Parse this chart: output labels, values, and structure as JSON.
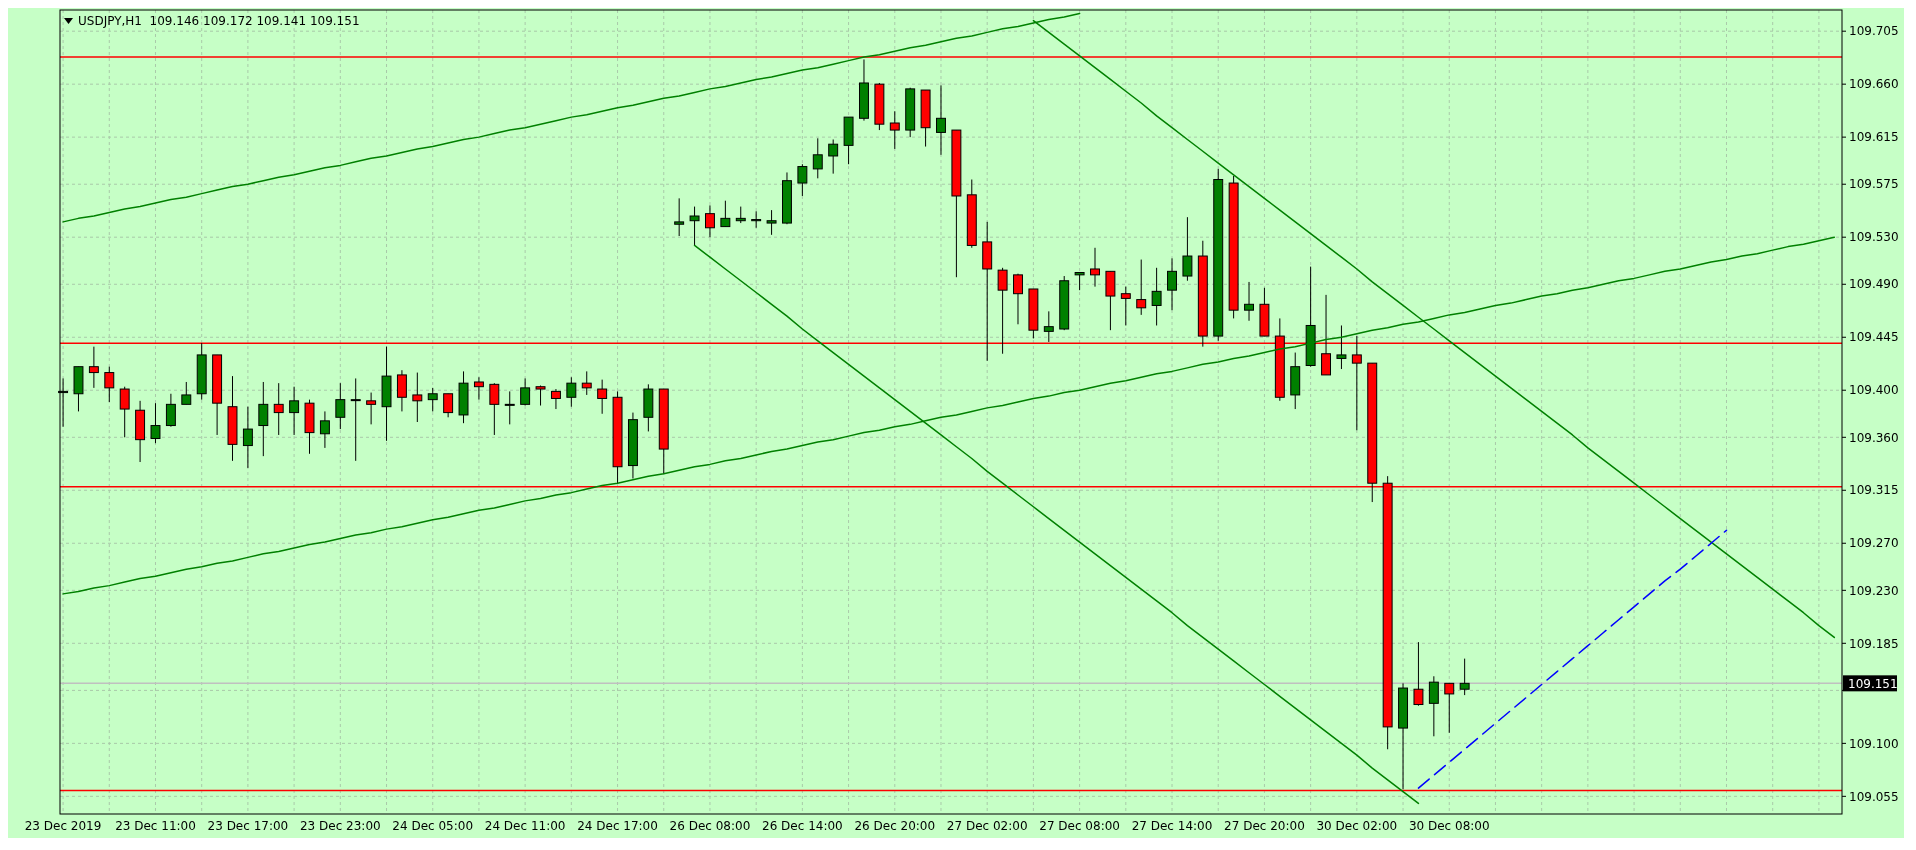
{
  "chart_data": {
    "type": "candlestick",
    "title": "USDJPY,H1  109.146 109.172 109.141 109.151",
    "categories": [
      "23 Dec 2019",
      null,
      null,
      null,
      null,
      null,
      "23 Dec 11:00",
      null,
      null,
      null,
      null,
      null,
      "23 Dec 17:00",
      null,
      null,
      null,
      null,
      null,
      "23 Dec 23:00",
      null,
      null,
      null,
      null,
      null,
      "24 Dec 05:00",
      null,
      null,
      null,
      null,
      null,
      "24 Dec 11:00",
      null,
      null,
      null,
      null,
      null,
      "24 Dec 17:00",
      null,
      null,
      null,
      null,
      null,
      "26 Dec 08:00",
      null,
      null,
      null,
      null,
      null,
      "26 Dec 14:00",
      null,
      null,
      null,
      null,
      null,
      "26 Dec 20:00",
      null,
      null,
      null,
      null,
      null,
      "27 Dec 02:00",
      null,
      null,
      null,
      null,
      null,
      "27 Dec 08:00",
      null,
      null,
      null,
      null,
      null,
      "27 Dec 14:00",
      null,
      null,
      null,
      null,
      null,
      "27 Dec 20:00",
      null,
      null,
      null,
      null,
      null,
      "30 Dec 02:00",
      null,
      null,
      null,
      null,
      null,
      "30 Dec 08:00",
      null,
      null,
      null,
      null,
      null,
      null,
      null,
      null,
      null,
      null,
      null,
      null,
      null,
      null,
      null,
      null,
      null,
      null,
      null,
      null,
      null,
      null,
      null,
      null,
      null
    ],
    "ohlc": [
      [
        109.398,
        109.41,
        109.369,
        109.399
      ],
      [
        109.397,
        109.42,
        109.382,
        109.42
      ],
      [
        109.42,
        109.437,
        109.402,
        109.415
      ],
      [
        109.415,
        109.42,
        109.39,
        109.402
      ],
      [
        109.401,
        109.403,
        109.36,
        109.384
      ],
      [
        109.383,
        109.391,
        109.339,
        109.358
      ],
      [
        109.359,
        109.389,
        109.355,
        109.37
      ],
      [
        109.37,
        109.397,
        109.369,
        109.388
      ],
      [
        109.388,
        109.407,
        109.388,
        109.396
      ],
      [
        109.397,
        109.44,
        109.392,
        109.43
      ],
      [
        109.43,
        109.43,
        109.362,
        109.389
      ],
      [
        109.386,
        109.412,
        109.34,
        109.354
      ],
      [
        109.353,
        109.386,
        109.334,
        109.367
      ],
      [
        109.37,
        109.407,
        109.344,
        109.388
      ],
      [
        109.388,
        109.406,
        109.362,
        109.381
      ],
      [
        109.381,
        109.403,
        109.362,
        109.391
      ],
      [
        109.389,
        109.392,
        109.346,
        109.364
      ],
      [
        109.363,
        109.382,
        109.351,
        109.374
      ],
      [
        109.377,
        109.406,
        109.367,
        109.392
      ],
      [
        109.392,
        109.41,
        109.34,
        109.392
      ],
      [
        109.391,
        109.398,
        109.371,
        109.388
      ],
      [
        109.386,
        109.437,
        109.357,
        109.412
      ],
      [
        109.413,
        109.417,
        109.382,
        109.394
      ],
      [
        109.396,
        109.415,
        109.373,
        109.391
      ],
      [
        109.392,
        109.402,
        109.382,
        109.397
      ],
      [
        109.397,
        109.397,
        109.377,
        109.381
      ],
      [
        109.379,
        109.416,
        109.372,
        109.406
      ],
      [
        109.407,
        109.411,
        109.392,
        109.403
      ],
      [
        109.405,
        109.406,
        109.362,
        109.388
      ],
      [
        109.388,
        109.399,
        109.371,
        109.388
      ],
      [
        109.388,
        109.41,
        109.387,
        109.402
      ],
      [
        109.403,
        109.404,
        109.387,
        109.401
      ],
      [
        109.399,
        109.401,
        109.384,
        109.393
      ],
      [
        109.394,
        109.411,
        109.386,
        109.406
      ],
      [
        109.406,
        109.416,
        109.396,
        109.402
      ],
      [
        109.401,
        109.409,
        109.38,
        109.393
      ],
      [
        109.394,
        109.399,
        109.321,
        109.335
      ],
      [
        109.336,
        109.381,
        109.325,
        109.375
      ],
      [
        109.377,
        109.405,
        109.365,
        109.401
      ],
      [
        109.401,
        109.401,
        109.329,
        109.35
      ],
      [
        109.541,
        109.563,
        109.531,
        109.543
      ],
      [
        109.544,
        109.556,
        109.523,
        109.548
      ],
      [
        109.55,
        109.557,
        109.53,
        109.538
      ],
      [
        109.539,
        109.561,
        109.539,
        109.546
      ],
      [
        109.544,
        109.556,
        109.542,
        109.546
      ],
      [
        109.544,
        109.552,
        109.538,
        109.545
      ],
      [
        109.542,
        109.553,
        109.532,
        109.544
      ],
      [
        109.542,
        109.585,
        109.541,
        109.578
      ],
      [
        109.576,
        109.592,
        109.565,
        109.59
      ],
      [
        109.588,
        109.614,
        109.58,
        109.6
      ],
      [
        109.599,
        109.613,
        109.584,
        109.609
      ],
      [
        109.608,
        109.632,
        109.592,
        109.632
      ],
      [
        109.631,
        109.681,
        109.629,
        109.661
      ],
      [
        109.66,
        109.661,
        109.621,
        109.626
      ],
      [
        109.627,
        109.637,
        109.605,
        109.621
      ],
      [
        109.621,
        109.657,
        109.615,
        109.656
      ],
      [
        109.655,
        109.655,
        109.607,
        109.623
      ],
      [
        109.619,
        109.659,
        109.6,
        109.631
      ],
      [
        109.621,
        109.621,
        109.496,
        109.565
      ],
      [
        109.566,
        109.579,
        109.521,
        109.523
      ],
      [
        109.526,
        109.543,
        109.425,
        109.503
      ],
      [
        109.502,
        109.504,
        109.431,
        109.485
      ],
      [
        109.498,
        109.499,
        109.456,
        109.482
      ],
      [
        109.486,
        109.486,
        109.444,
        109.451
      ],
      [
        109.45,
        109.467,
        109.441,
        109.454
      ],
      [
        109.452,
        109.497,
        109.451,
        109.493
      ],
      [
        109.498,
        109.5,
        109.485,
        109.5
      ],
      [
        109.503,
        109.521,
        109.488,
        109.498
      ],
      [
        109.501,
        109.501,
        109.451,
        109.48
      ],
      [
        109.482,
        109.488,
        109.455,
        109.478
      ],
      [
        109.477,
        109.511,
        109.464,
        109.47
      ],
      [
        109.472,
        109.504,
        109.455,
        109.484
      ],
      [
        109.485,
        109.512,
        109.468,
        109.501
      ],
      [
        109.497,
        109.547,
        109.493,
        109.514
      ],
      [
        109.514,
        109.527,
        109.437,
        109.446
      ],
      [
        109.446,
        109.588,
        109.442,
        109.579
      ],
      [
        109.576,
        109.582,
        109.461,
        109.468
      ],
      [
        109.468,
        109.492,
        109.459,
        109.473
      ],
      [
        109.473,
        109.487,
        109.446,
        109.446
      ],
      [
        109.446,
        109.461,
        109.391,
        109.394
      ],
      [
        109.396,
        109.432,
        109.384,
        109.42
      ],
      [
        109.421,
        109.505,
        109.42,
        109.455
      ],
      [
        109.431,
        109.481,
        109.413,
        109.413
      ],
      [
        109.427,
        109.455,
        109.418,
        109.43
      ],
      [
        109.43,
        109.446,
        109.366,
        109.423
      ],
      [
        109.423,
        109.423,
        109.305,
        109.321
      ],
      [
        109.321,
        109.327,
        109.095,
        109.114
      ],
      [
        109.113,
        109.151,
        109.061,
        109.147
      ],
      [
        109.146,
        109.186,
        109.132,
        109.133
      ],
      [
        109.134,
        109.157,
        109.106,
        109.152
      ],
      [
        109.151,
        109.151,
        109.109,
        109.142
      ],
      [
        109.146,
        109.172,
        109.141,
        109.151
      ],
      null,
      null,
      null,
      null,
      null,
      null,
      null,
      null,
      null,
      null,
      null,
      null,
      null,
      null,
      null,
      null,
      null,
      null,
      null,
      null,
      null,
      null,
      null,
      null
    ],
    "colors": [
      "#008000",
      "#008000",
      "#ff0000",
      "#ff0000",
      "#ff0000",
      "#ff0000",
      "#008000",
      "#008000",
      "#008000",
      "#008000",
      "#ff0000",
      "#ff0000",
      "#008000",
      "#008000",
      "#ff0000",
      "#008000",
      "#ff0000",
      "#008000",
      "#008000",
      "#008000",
      "#ff0000",
      "#008000",
      "#ff0000",
      "#ff0000",
      "#008000",
      "#ff0000",
      "#008000",
      "#ff0000",
      "#ff0000",
      "#008000",
      "#008000",
      "#ff0000",
      "#ff0000",
      "#008000",
      "#ff0000",
      "#ff0000",
      "#ff0000",
      "#008000",
      "#008000",
      "#ff0000",
      "#008000",
      "#008000",
      "#ff0000",
      "#008000",
      "#008000",
      "#008000",
      "#008000",
      "#008000",
      "#008000",
      "#008000",
      "#008000",
      "#008000",
      "#008000",
      "#ff0000",
      "#ff0000",
      "#008000",
      "#ff0000",
      "#008000",
      "#ff0000",
      "#ff0000",
      "#ff0000",
      "#ff0000",
      "#ff0000",
      "#ff0000",
      "#008000",
      "#008000",
      "#008000",
      "#ff0000",
      "#ff0000",
      "#ff0000",
      "#ff0000",
      "#008000",
      "#008000",
      "#008000",
      "#ff0000",
      "#008000",
      "#ff0000",
      "#008000",
      "#ff0000",
      "#ff0000",
      "#008000",
      "#008000",
      "#ff0000",
      "#008000",
      "#ff0000",
      "#ff0000",
      "#ff0000",
      "#008000",
      "#ff0000",
      "#008000",
      "#ff0000",
      "#008000",
      null,
      null,
      null,
      null,
      null,
      null,
      null,
      null,
      null,
      null,
      null,
      null,
      null,
      null,
      null,
      null,
      null,
      null,
      null,
      null,
      null,
      null,
      null,
      null
    ],
    "series": [
      {
        "type": "line",
        "color": "#008000",
        "values": [
          109.543,
          109.546,
          109.548,
          109.551,
          109.554,
          109.556,
          109.559,
          109.562,
          109.564,
          109.567,
          109.57,
          109.573,
          109.575,
          109.578,
          109.581,
          109.583,
          109.586,
          109.589,
          109.591,
          109.594,
          109.597,
          109.599,
          109.602,
          109.605,
          109.607,
          109.61,
          109.613,
          109.615,
          109.618,
          109.621,
          109.623,
          109.626,
          109.629,
          109.632,
          109.634,
          109.637,
          109.64,
          109.642,
          109.645,
          109.648,
          109.65,
          109.653,
          109.656,
          109.658,
          109.661,
          109.664,
          109.666,
          109.669,
          109.672,
          109.674,
          109.677,
          109.68,
          109.683,
          109.685,
          109.688,
          109.691,
          109.693,
          109.696,
          109.699,
          109.701,
          109.704,
          109.707,
          109.709,
          109.712,
          109.715,
          109.717,
          109.72,
          null,
          null,
          null,
          null,
          null,
          null,
          null,
          null,
          null,
          null,
          null,
          null,
          null,
          null,
          null,
          null,
          null,
          null,
          null,
          null,
          null,
          null,
          null,
          null,
          null,
          null,
          null,
          null,
          null,
          null,
          null,
          null,
          null,
          null,
          null,
          null,
          null,
          null,
          null,
          null,
          null,
          null,
          null,
          null,
          null,
          null,
          null,
          null,
          null
        ]
      },
      {
        "type": "line",
        "color": "#008000",
        "values": [
          109.227,
          109.229,
          109.232,
          109.234,
          109.237,
          109.24,
          109.242,
          109.245,
          109.248,
          109.25,
          109.253,
          109.255,
          109.258,
          109.261,
          109.263,
          109.266,
          109.269,
          109.271,
          109.274,
          109.277,
          109.279,
          109.282,
          109.284,
          109.287,
          109.29,
          109.292,
          109.295,
          109.298,
          109.3,
          109.303,
          109.306,
          109.308,
          109.311,
          109.313,
          109.316,
          109.319,
          109.321,
          109.324,
          109.327,
          109.329,
          109.332,
          109.335,
          109.337,
          109.34,
          109.342,
          109.345,
          109.348,
          109.35,
          109.353,
          109.356,
          109.358,
          109.361,
          109.364,
          109.366,
          109.369,
          109.371,
          109.374,
          109.377,
          109.379,
          109.382,
          109.385,
          109.387,
          109.39,
          109.393,
          109.395,
          109.398,
          109.4,
          109.403,
          109.406,
          109.408,
          109.411,
          109.414,
          109.416,
          109.419,
          109.422,
          109.424,
          109.427,
          109.429,
          109.432,
          109.435,
          109.437,
          109.44,
          109.443,
          109.445,
          109.448,
          109.451,
          109.453,
          109.456,
          109.458,
          109.461,
          109.464,
          109.466,
          109.469,
          109.472,
          109.474,
          109.477,
          109.48,
          109.482,
          109.485,
          109.487,
          109.49,
          109.493,
          109.495,
          109.498,
          109.501,
          109.503,
          109.506,
          109.509,
          109.511,
          109.514,
          109.516,
          109.519,
          109.522,
          109.524,
          109.527,
          109.53
        ]
      },
      {
        "type": "line",
        "color": "#008000",
        "values": [
          null,
          null,
          null,
          null,
          null,
          null,
          null,
          null,
          null,
          null,
          null,
          null,
          null,
          null,
          null,
          null,
          null,
          null,
          null,
          null,
          null,
          null,
          null,
          null,
          null,
          null,
          null,
          null,
          null,
          null,
          null,
          null,
          null,
          null,
          null,
          null,
          null,
          null,
          null,
          null,
          null,
          109.523,
          109.513,
          109.503,
          109.493,
          109.483,
          109.473,
          109.463,
          109.452,
          109.442,
          109.432,
          109.422,
          109.412,
          109.402,
          109.392,
          109.382,
          109.372,
          109.362,
          109.352,
          109.342,
          109.331,
          109.321,
          109.311,
          109.301,
          109.291,
          109.281,
          109.271,
          109.261,
          109.251,
          109.241,
          109.231,
          109.221,
          109.211,
          109.2,
          109.19,
          109.18,
          109.17,
          109.16,
          109.15,
          109.14,
          109.13,
          109.12,
          109.11,
          109.1,
          109.09,
          109.079,
          109.069,
          109.059,
          109.049,
          null,
          null,
          null,
          null,
          null,
          null,
          null,
          null,
          null,
          null,
          null,
          null,
          null,
          null,
          null,
          null,
          null,
          null,
          null,
          null,
          null,
          null,
          null,
          null,
          null,
          null,
          null
        ]
      },
      {
        "type": "line",
        "color": "#008000",
        "values": [
          null,
          null,
          null,
          null,
          null,
          null,
          null,
          null,
          null,
          null,
          null,
          null,
          null,
          null,
          null,
          null,
          null,
          null,
          null,
          null,
          null,
          null,
          null,
          null,
          null,
          null,
          null,
          null,
          null,
          null,
          null,
          null,
          null,
          null,
          null,
          null,
          null,
          null,
          null,
          null,
          null,
          null,
          null,
          null,
          null,
          null,
          null,
          null,
          null,
          null,
          null,
          null,
          null,
          null,
          null,
          null,
          null,
          null,
          null,
          null,
          null,
          null,
          null,
          109.714,
          109.704,
          109.694,
          109.684,
          109.674,
          109.664,
          109.654,
          109.644,
          109.633,
          109.623,
          109.613,
          109.603,
          109.593,
          109.583,
          109.573,
          109.563,
          109.553,
          109.543,
          109.533,
          109.523,
          109.513,
          109.503,
          109.492,
          109.482,
          109.472,
          109.462,
          109.452,
          109.442,
          109.432,
          109.422,
          109.412,
          109.402,
          109.392,
          109.382,
          109.372,
          109.362,
          109.351,
          109.341,
          109.331,
          109.321,
          109.311,
          109.301,
          109.291,
          109.281,
          109.271,
          109.261,
          109.251,
          109.241,
          109.231,
          109.221,
          109.211,
          109.2,
          109.19
        ]
      },
      {
        "type": "line",
        "color": "#0000ff",
        "line_style": "dashed",
        "values": [
          null,
          null,
          null,
          null,
          null,
          null,
          null,
          null,
          null,
          null,
          null,
          null,
          null,
          null,
          null,
          null,
          null,
          null,
          null,
          null,
          null,
          null,
          null,
          null,
          null,
          null,
          null,
          null,
          null,
          null,
          null,
          null,
          null,
          null,
          null,
          null,
          null,
          null,
          null,
          null,
          null,
          null,
          null,
          null,
          null,
          null,
          null,
          null,
          null,
          null,
          null,
          null,
          null,
          null,
          null,
          null,
          null,
          null,
          null,
          null,
          null,
          null,
          null,
          null,
          null,
          null,
          null,
          null,
          null,
          null,
          null,
          null,
          null,
          null,
          null,
          null,
          null,
          null,
          null,
          null,
          null,
          null,
          null,
          null,
          null,
          null,
          null,
          null,
          109.062,
          109.073,
          109.084,
          109.095,
          109.106,
          109.117,
          109.128,
          109.139,
          109.15,
          109.161,
          109.172,
          109.183,
          109.194,
          109.205,
          109.216,
          109.227,
          109.238,
          109.248,
          109.259,
          109.27,
          109.281,
          null,
          null,
          null,
          null,
          null,
          null,
          null
        ]
      }
    ],
    "ref_lines": [
      {
        "axis": "y",
        "value": 109.683,
        "color": "#ff0000"
      },
      {
        "axis": "y",
        "value": 109.44,
        "color": "#ff0000"
      },
      {
        "axis": "y",
        "value": 109.318,
        "color": "#ff0000"
      },
      {
        "axis": "y",
        "value": 109.06,
        "color": "#ff0000"
      },
      {
        "axis": "y",
        "value": 109.151,
        "label": "109.151",
        "color": "#c0c0c0"
      }
    ],
    "ylim": [
      109.04,
      109.723
    ],
    "yticks": [
      109.055,
      {
        "value": 109.1,
        "label": "109.100"
      },
      {
        "value": 109.145,
        "label": null
      },
      109.185,
      {
        "value": 109.23,
        "label": "109.230"
      },
      {
        "value": 109.27,
        "label": "109.270"
      },
      109.315,
      {
        "value": 109.36,
        "label": "109.360"
      },
      {
        "value": 109.4,
        "label": "109.400"
      },
      109.445,
      {
        "value": 109.49,
        "label": "109.490"
      },
      {
        "value": 109.53,
        "label": "109.530"
      },
      109.575,
      109.615,
      {
        "value": 109.66,
        "label": "109.660"
      },
      109.705
    ],
    "grid": true
  }
}
